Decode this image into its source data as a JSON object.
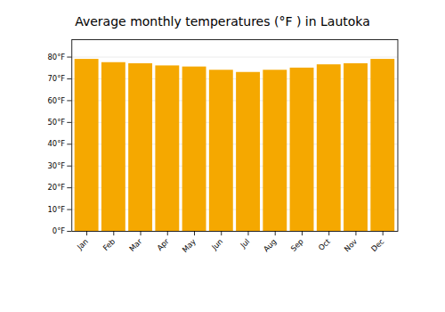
{
  "chart_data": {
    "type": "bar",
    "title": "Average monthly temperatures (°F ) in Lautoka",
    "categories": [
      "Jan",
      "Feb",
      "Mar",
      "Apr",
      "May",
      "Jun",
      "Jul",
      "Aug",
      "Sep",
      "Oct",
      "Nov",
      "Dec"
    ],
    "values": [
      79.0,
      77.5,
      77.0,
      76.0,
      75.5,
      74.0,
      73.0,
      74.0,
      75.0,
      76.5,
      77.0,
      79.0
    ],
    "color": "#F5A800",
    "ylim": [
      0,
      88
    ],
    "yticks": [
      {
        "value": 0,
        "label": "0°F"
      },
      {
        "value": 10,
        "label": "10°F"
      },
      {
        "value": 20,
        "label": "20°F"
      },
      {
        "value": 30,
        "label": "30°F"
      },
      {
        "value": 40,
        "label": "40°F"
      },
      {
        "value": 50,
        "label": "50°F"
      },
      {
        "value": 60,
        "label": "60°F"
      },
      {
        "value": 70,
        "label": "70°F"
      },
      {
        "value": 80,
        "label": "80°F"
      }
    ],
    "grid": true
  }
}
